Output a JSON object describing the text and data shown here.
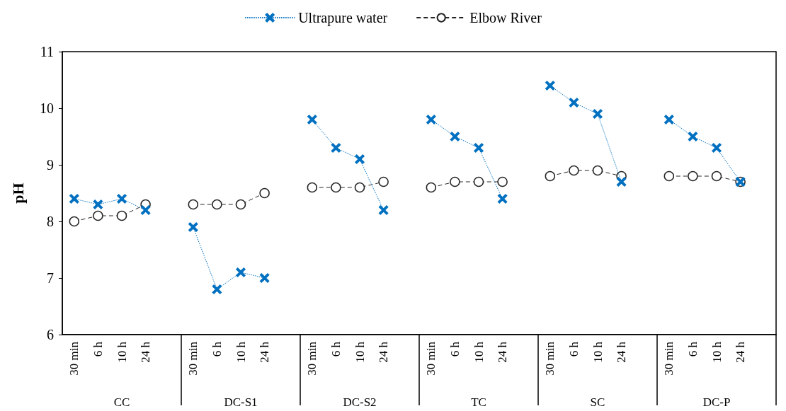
{
  "chart_data": {
    "type": "line",
    "ylabel": "pH",
    "categories": [
      "30 min",
      "6 h",
      "10 h",
      "24 h",
      null,
      "30 min",
      "6 h",
      "10 h",
      "24 h",
      null,
      "30 min",
      "6 h",
      "10 h",
      "24 h",
      null,
      "30 min",
      "6 h",
      "10 h",
      "24 h",
      null,
      "30 min",
      "6 h",
      "10 h",
      "24 h",
      null,
      "30 min",
      "6 h",
      "10 h",
      "24 h",
      null
    ],
    "annotations": [
      "CC",
      "DC-S1",
      "DC-S2",
      "TC",
      "SC",
      "DC-P"
    ],
    "series": [
      {
        "name": "Ultrapure water",
        "color": "#0070c0",
        "marker": "cross",
        "line_style": "dotted",
        "values": [
          8.4,
          8.3,
          8.4,
          8.2,
          null,
          7.9,
          6.8,
          7.1,
          7.0,
          null,
          9.8,
          9.3,
          9.1,
          8.2,
          null,
          9.8,
          9.5,
          9.3,
          8.4,
          null,
          10.4,
          10.1,
          9.9,
          8.7,
          null,
          9.8,
          9.5,
          9.3,
          8.7,
          null
        ]
      },
      {
        "name": "Elbow River",
        "color": "#262626",
        "marker": "circle",
        "line_style": "dashed",
        "values": [
          8.0,
          8.1,
          8.1,
          8.3,
          null,
          8.3,
          8.3,
          8.3,
          8.5,
          null,
          8.6,
          8.6,
          8.6,
          8.7,
          null,
          8.6,
          8.7,
          8.7,
          8.7,
          null,
          8.8,
          8.9,
          8.9,
          8.8,
          null,
          8.8,
          8.8,
          8.8,
          8.7,
          null
        ]
      }
    ],
    "ylim": [
      6,
      11
    ],
    "yticks": [
      6,
      7,
      8,
      9,
      10,
      11
    ],
    "grid": false,
    "legend": "top"
  }
}
